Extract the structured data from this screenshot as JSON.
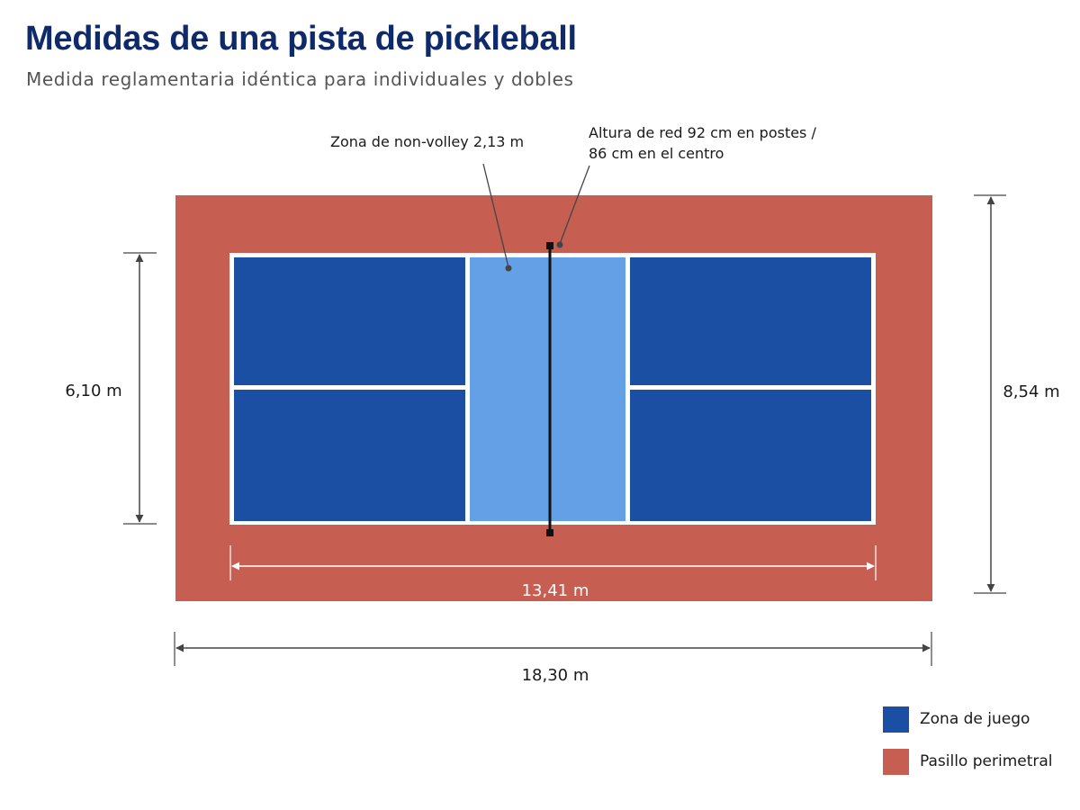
{
  "title": "Medidas de una pista de pickleball",
  "subtitle": "Medida reglamentaria idéntica para individuales y dobles",
  "annotations": {
    "non_volley": "Zona de non-volley 2,13 m",
    "net_line1": "Altura de red 92 cm en postes /",
    "net_line2": "86 cm en el centro"
  },
  "dimensions": {
    "court_width": "6,10 m",
    "total_width": "8,54 m",
    "court_length": "13,41 m",
    "total_length": "18,30 m"
  },
  "legend": [
    {
      "label": "Zona de juego",
      "color": "#1b4fa3"
    },
    {
      "label": "Pasillo perimetral",
      "color": "#c65f52"
    }
  ],
  "colors": {
    "perimeter": "#c65f52",
    "play_zone": "#1b4fa3",
    "kitchen": "#64a0e6",
    "lines": "#ffffff",
    "net": "#111111",
    "dimension": "#444444"
  }
}
